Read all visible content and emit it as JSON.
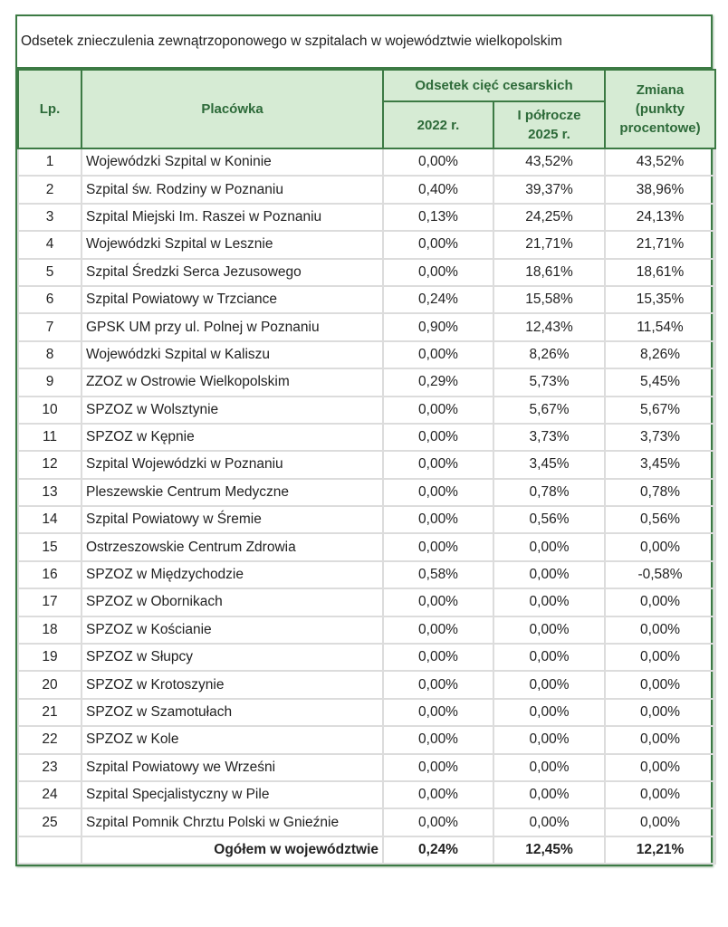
{
  "title": "Odsetek znieczulenia zewnątrzoponowego w szpitalach w województwie wielkopolskim",
  "headers": {
    "lp": "Lp.",
    "placowka": "Placówka",
    "group": "Odsetek cięć cesarskich",
    "y2022": "2022 r.",
    "y2025": "I półrocze 2025 r.",
    "zmiana": "Zmiana (punkty procentowe)"
  },
  "rows": [
    [
      "1",
      "Wojewódzki Szpital w Koninie",
      "0,00%",
      "43,52%",
      "43,52%"
    ],
    [
      "2",
      "Szpital św. Rodziny w Poznaniu",
      "0,40%",
      "39,37%",
      "38,96%"
    ],
    [
      "3",
      "Szpital Miejski Im. Raszei w Poznaniu",
      "0,13%",
      "24,25%",
      "24,13%"
    ],
    [
      "4",
      "Wojewódzki Szpital w Lesznie",
      "0,00%",
      "21,71%",
      "21,71%"
    ],
    [
      "5",
      "Szpital Średzki Serca Jezusowego",
      "0,00%",
      "18,61%",
      "18,61%"
    ],
    [
      "6",
      "Szpital Powiatowy w Trzciance",
      "0,24%",
      "15,58%",
      "15,35%"
    ],
    [
      "7",
      "GPSK UM przy ul. Polnej w Poznaniu",
      "0,90%",
      "12,43%",
      "11,54%"
    ],
    [
      "8",
      "Wojewódzki Szpital w Kaliszu",
      "0,00%",
      "8,26%",
      "8,26%"
    ],
    [
      "9",
      "ZZOZ w Ostrowie Wielkopolskim",
      "0,29%",
      "5,73%",
      "5,45%"
    ],
    [
      "10",
      "SPZOZ w Wolsztynie",
      "0,00%",
      "5,67%",
      "5,67%"
    ],
    [
      "11",
      "SPZOZ w Kępnie",
      "0,00%",
      "3,73%",
      "3,73%"
    ],
    [
      "12",
      "Szpital Wojewódzki w Poznaniu",
      "0,00%",
      "3,45%",
      "3,45%"
    ],
    [
      "13",
      "Pleszewskie Centrum Medyczne",
      "0,00%",
      "0,78%",
      "0,78%"
    ],
    [
      "14",
      "Szpital Powiatowy w Śremie",
      "0,00%",
      "0,56%",
      "0,56%"
    ],
    [
      "15",
      "Ostrzeszowskie Centrum Zdrowia",
      "0,00%",
      "0,00%",
      "0,00%"
    ],
    [
      "16",
      "SPZOZ w Międzychodzie",
      "0,58%",
      "0,00%",
      "-0,58%"
    ],
    [
      "17",
      "SPZOZ w Obornikach",
      "0,00%",
      "0,00%",
      "0,00%"
    ],
    [
      "18",
      "SPZOZ w Kościanie",
      "0,00%",
      "0,00%",
      "0,00%"
    ],
    [
      "19",
      "SPZOZ w Słupcy",
      "0,00%",
      "0,00%",
      "0,00%"
    ],
    [
      "20",
      "SPZOZ w Krotoszynie",
      "0,00%",
      "0,00%",
      "0,00%"
    ],
    [
      "21",
      "SPZOZ w Szamotułach",
      "0,00%",
      "0,00%",
      "0,00%"
    ],
    [
      "22",
      "SPZOZ w Kole",
      "0,00%",
      "0,00%",
      "0,00%"
    ],
    [
      "23",
      "Szpital Powiatowy we Wrześni",
      "0,00%",
      "0,00%",
      "0,00%"
    ],
    [
      "24",
      "Szpital Specjalistyczny w Pile",
      "0,00%",
      "0,00%",
      "0,00%"
    ],
    [
      "25",
      "Szpital Pomnik Chrztu Polski w Gnieźnie",
      "0,00%",
      "0,00%",
      "0,00%"
    ]
  ],
  "total": {
    "label": "Ogółem w województwie",
    "y2022": "0,24%",
    "y2025": "12,45%",
    "zmiana": "12,21%"
  }
}
